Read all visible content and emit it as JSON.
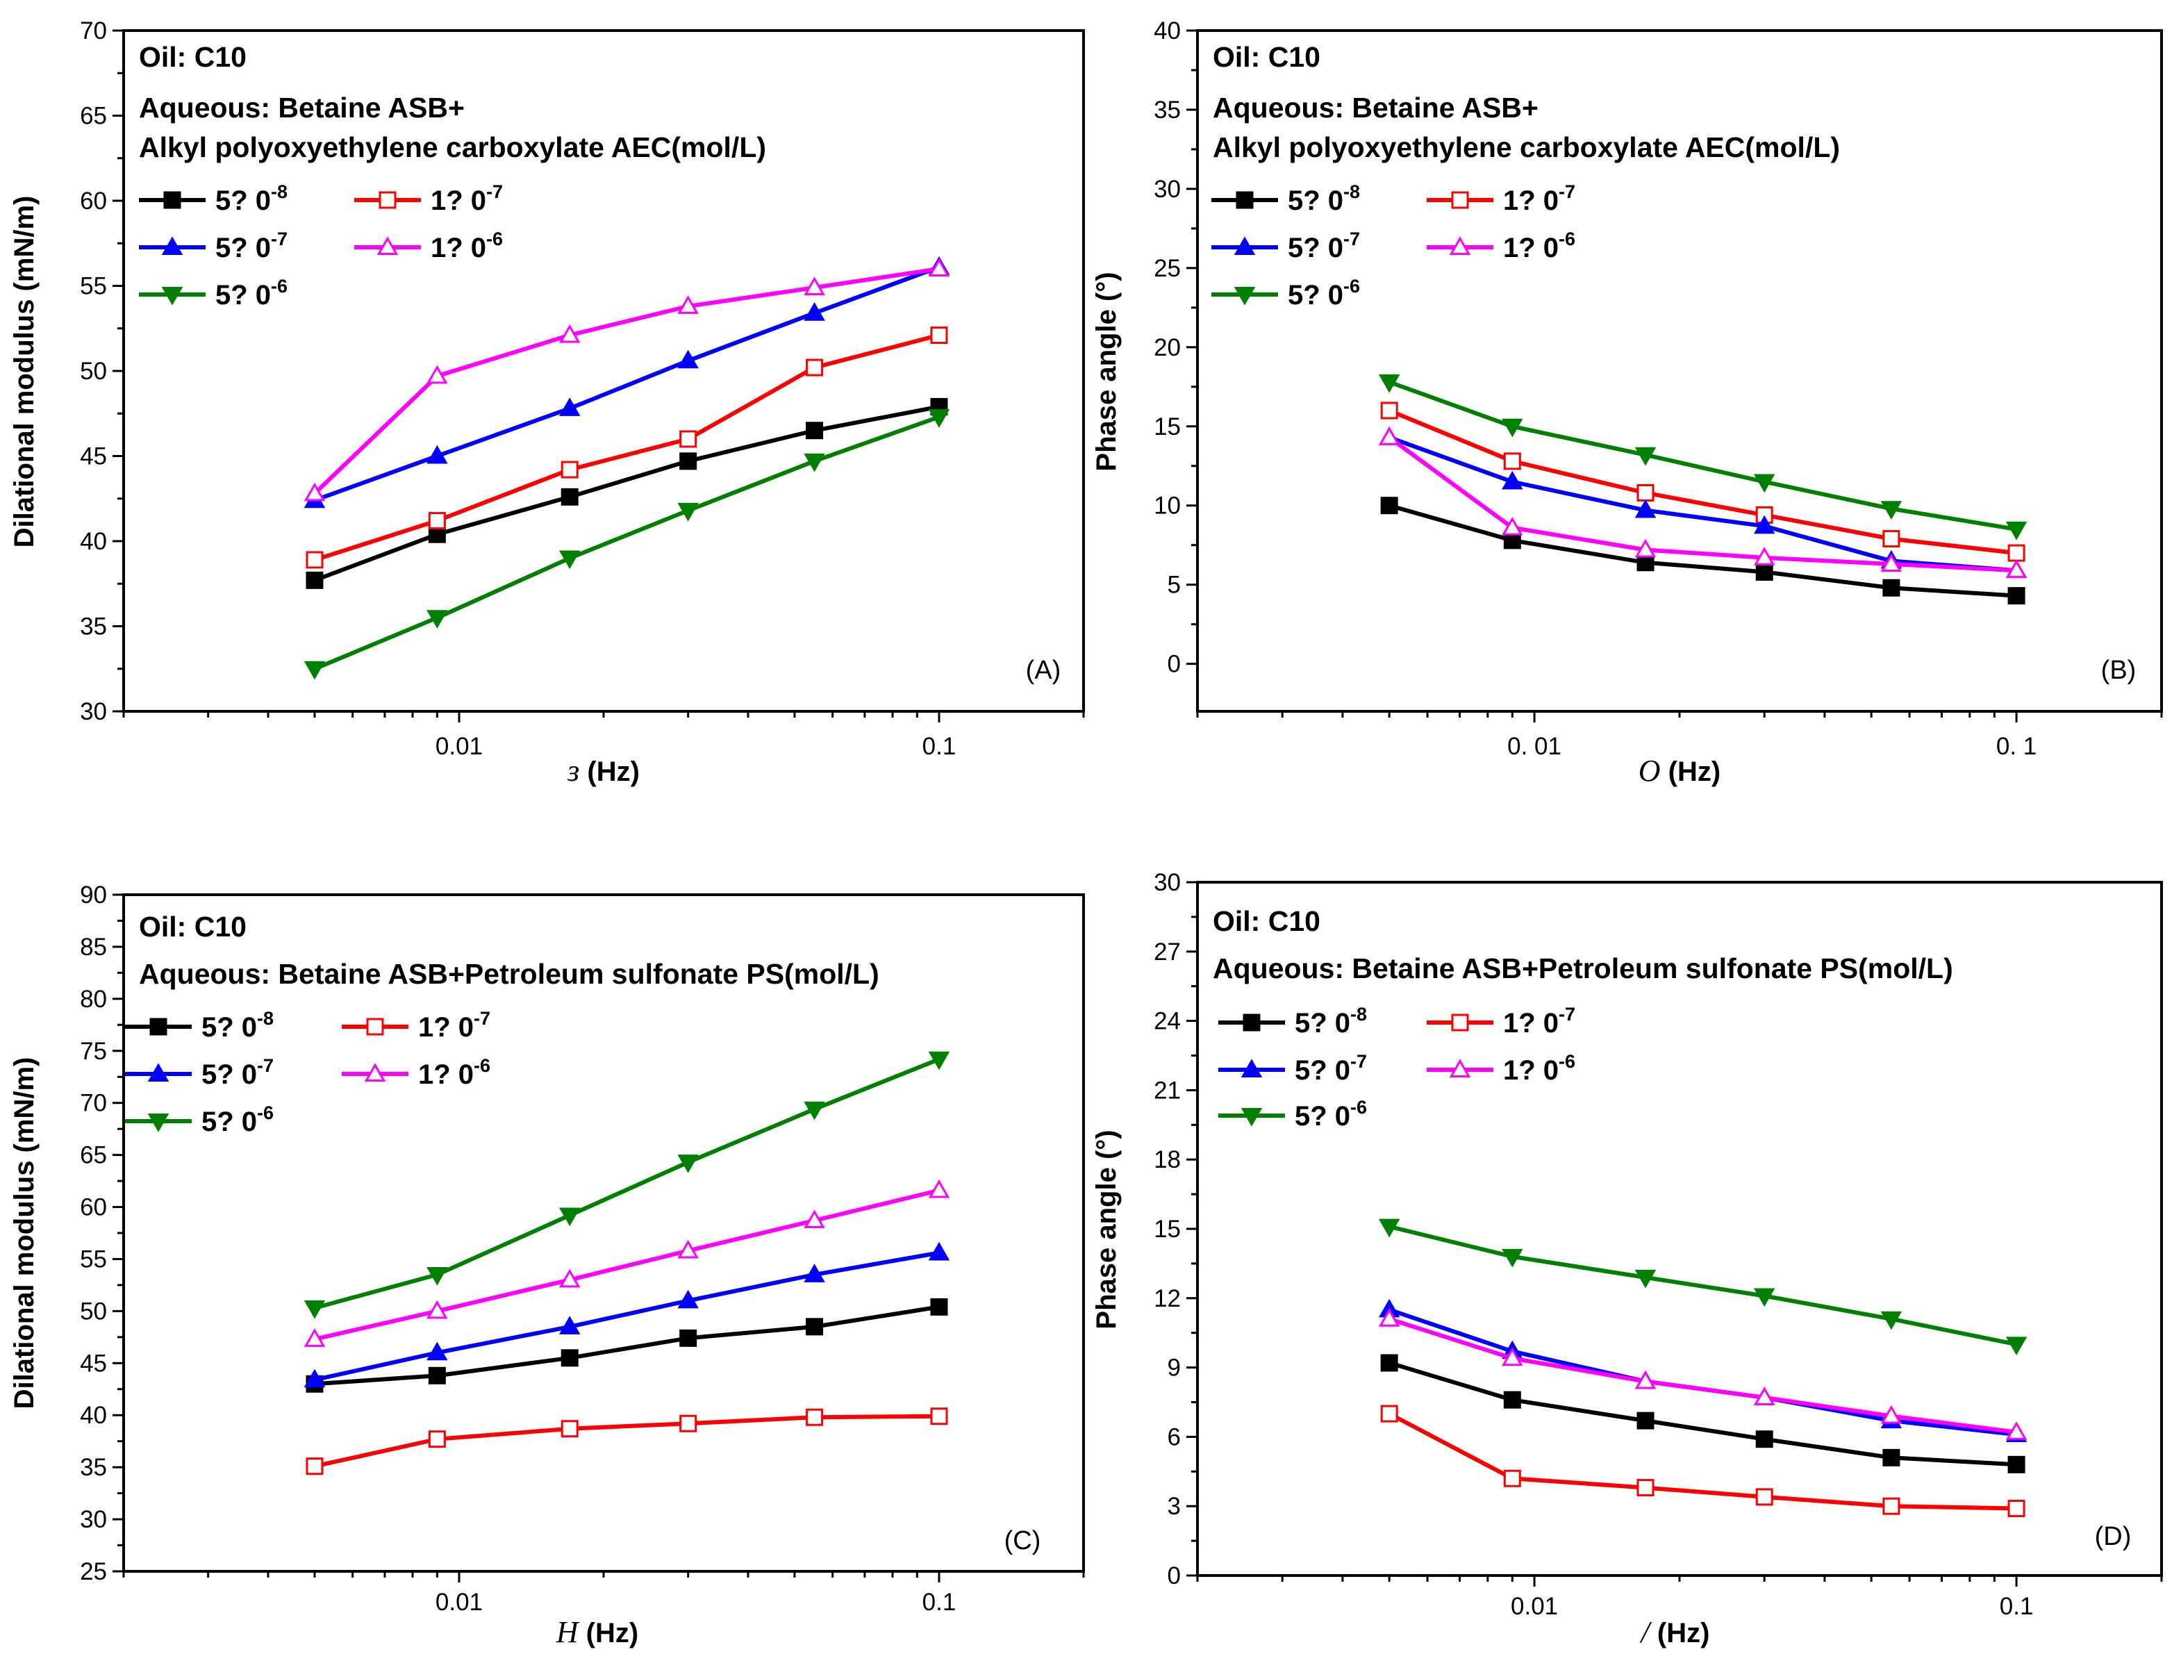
{
  "colors": {
    "5e-8": "#000000",
    "1e-7": "#ff0000",
    "5e-7": "#0000ff",
    "1e-6": "#ff00ff",
    "5e-6": "#008000"
  },
  "chart_data": [
    {
      "type": "line",
      "panel_label": "(A)",
      "ylabel": "Dilational modulus (mN/m)",
      "xlabel_symbol": "ɜ",
      "xlabel_unit": "(Hz)",
      "x_scale": "log",
      "xlim": [
        0.002,
        0.2
      ],
      "xticks": [
        0.01,
        0.1
      ],
      "xtick_labels": [
        "0.01",
        "0.1"
      ],
      "ylim": [
        30,
        70
      ],
      "yticks": [
        30,
        35,
        40,
        45,
        50,
        55,
        60,
        65,
        70
      ],
      "annotation": [
        "Oil:  C10",
        "Aqueous: Betaine ASB+",
        "Alkyl polyoxyethylene carboxylate AEC(mol/L)"
      ],
      "x": [
        0.005,
        0.009,
        0.017,
        0.03,
        0.055,
        0.1
      ],
      "series": [
        {
          "name": "5?  0",
          "exp": "-8",
          "key": "5e-8",
          "marker": "square-filled",
          "values": [
            37.7,
            40.4,
            42.6,
            44.7,
            46.5,
            47.9
          ]
        },
        {
          "name": "1?  0",
          "exp": "-7",
          "key": "1e-7",
          "marker": "square-open",
          "values": [
            38.9,
            41.2,
            44.2,
            46.0,
            50.2,
            52.1
          ]
        },
        {
          "name": "5?  0",
          "exp": "-7",
          "key": "5e-7",
          "marker": "triangle-up-filled",
          "values": [
            42.4,
            45.0,
            47.8,
            50.6,
            53.4,
            56.1
          ]
        },
        {
          "name": "1?  0",
          "exp": "-6",
          "key": "1e-6",
          "marker": "triangle-up-open",
          "values": [
            42.8,
            49.7,
            52.1,
            53.8,
            54.9,
            56.0
          ]
        },
        {
          "name": "5?  0",
          "exp": "-6",
          "key": "5e-6",
          "marker": "triangle-down-filled",
          "values": [
            32.5,
            35.5,
            39.0,
            41.8,
            44.7,
            47.3
          ]
        }
      ]
    },
    {
      "type": "line",
      "panel_label": "(B)",
      "ylabel": "Phase angle (°)",
      "xlabel_symbol": "O",
      "xlabel_unit": "(Hz)",
      "x_scale": "log",
      "xlim": [
        0.002,
        0.2
      ],
      "xticks": [
        0.01,
        0.1
      ],
      "xtick_labels": [
        "0. 01",
        "0. 1"
      ],
      "ylim": [
        -3,
        40
      ],
      "yticks": [
        0,
        5,
        10,
        15,
        20,
        25,
        30,
        35,
        40
      ],
      "annotation": [
        "Oil:  C10",
        "Aqueous: Betaine ASB+",
        "Alkyl polyoxyethylene carboxylate AEC(mol/L)"
      ],
      "x": [
        0.005,
        0.009,
        0.017,
        0.03,
        0.055,
        0.1
      ],
      "series": [
        {
          "name": "5?  0",
          "exp": "-8",
          "key": "5e-8",
          "marker": "square-filled",
          "values": [
            10.0,
            7.8,
            6.4,
            5.8,
            4.8,
            4.3
          ]
        },
        {
          "name": "1?  0",
          "exp": "-7",
          "key": "1e-7",
          "marker": "square-open",
          "values": [
            16.0,
            12.8,
            10.8,
            9.4,
            7.9,
            7.0
          ]
        },
        {
          "name": "5?  0",
          "exp": "-7",
          "key": "5e-7",
          "marker": "triangle-up-filled",
          "values": [
            14.3,
            11.5,
            9.7,
            8.7,
            6.5,
            5.9
          ]
        },
        {
          "name": "1?  0",
          "exp": "-6",
          "key": "1e-6",
          "marker": "triangle-up-open",
          "values": [
            14.3,
            8.6,
            7.2,
            6.7,
            6.3,
            5.9
          ]
        },
        {
          "name": "5?  0",
          "exp": "-6",
          "key": "5e-6",
          "marker": "triangle-down-filled",
          "values": [
            17.8,
            15.0,
            13.2,
            11.5,
            9.8,
            8.5
          ]
        }
      ]
    },
    {
      "type": "line",
      "panel_label": "(C)",
      "ylabel": "Dilational modulus (mN/m)",
      "xlabel_symbol": "H",
      "xlabel_unit": "(Hz)",
      "x_scale": "log",
      "xlim": [
        0.002,
        0.2
      ],
      "xticks": [
        0.01,
        0.1
      ],
      "xtick_labels": [
        "0.01",
        "0.1"
      ],
      "ylim": [
        25,
        90
      ],
      "yticks": [
        25,
        30,
        35,
        40,
        45,
        50,
        55,
        60,
        65,
        70,
        75,
        80,
        85,
        90
      ],
      "annotation": [
        "Oil:  C10",
        "Aqueous: Betaine ASB+Petroleum sulfonate PS(mol/L)"
      ],
      "x": [
        0.005,
        0.009,
        0.017,
        0.03,
        0.055,
        0.1
      ],
      "series": [
        {
          "name": "5?  0",
          "exp": "-8",
          "key": "5e-8",
          "marker": "square-filled",
          "values": [
            43.0,
            43.8,
            45.5,
            47.4,
            48.5,
            50.4
          ]
        },
        {
          "name": "1?  0",
          "exp": "-7",
          "key": "1e-7",
          "marker": "square-open",
          "values": [
            35.1,
            37.7,
            38.7,
            39.2,
            39.8,
            39.9
          ]
        },
        {
          "name": "5?  0",
          "exp": "-7",
          "key": "5e-7",
          "marker": "triangle-up-filled",
          "values": [
            43.4,
            46.0,
            48.5,
            51.0,
            53.5,
            55.6
          ]
        },
        {
          "name": "1?  0",
          "exp": "-6",
          "key": "1e-6",
          "marker": "triangle-up-open",
          "values": [
            47.3,
            50.0,
            53.0,
            55.8,
            58.7,
            61.6
          ]
        },
        {
          "name": "5?  0",
          "exp": "-6",
          "key": "5e-6",
          "marker": "triangle-down-filled",
          "values": [
            50.3,
            53.5,
            59.2,
            64.3,
            69.4,
            74.2
          ]
        }
      ]
    },
    {
      "type": "line",
      "panel_label": "(D)",
      "ylabel": "Phase angle (°)",
      "xlabel_symbol": "/",
      "xlabel_unit": "(Hz)",
      "x_scale": "log",
      "xlim": [
        0.002,
        0.2
      ],
      "xticks": [
        0.01,
        0.1
      ],
      "xtick_labels": [
        "0.01",
        "0.1"
      ],
      "ylim": [
        0,
        30
      ],
      "yticks": [
        0,
        3,
        6,
        9,
        12,
        15,
        18,
        21,
        24,
        27,
        30
      ],
      "annotation": [
        "Oil:  C10",
        "Aqueous: Betaine ASB+Petroleum sulfonate PS(mol/L)"
      ],
      "x": [
        0.005,
        0.009,
        0.017,
        0.03,
        0.055,
        0.1
      ],
      "series": [
        {
          "name": "5?  0",
          "exp": "-8",
          "key": "5e-8",
          "marker": "square-filled",
          "values": [
            9.2,
            7.6,
            6.7,
            5.9,
            5.1,
            4.8
          ]
        },
        {
          "name": "1?  0",
          "exp": "-7",
          "key": "1e-7",
          "marker": "square-open",
          "values": [
            7.0,
            4.2,
            3.8,
            3.4,
            3.0,
            2.9
          ]
        },
        {
          "name": "5?  0",
          "exp": "-7",
          "key": "5e-7",
          "marker": "triangle-up-filled",
          "values": [
            11.5,
            9.7,
            8.4,
            7.7,
            6.7,
            6.1
          ]
        },
        {
          "name": "1?  0",
          "exp": "-6",
          "key": "1e-6",
          "marker": "triangle-up-open",
          "values": [
            11.1,
            9.4,
            8.4,
            7.7,
            6.9,
            6.2
          ]
        },
        {
          "name": "5?  0",
          "exp": "-6",
          "key": "5e-6",
          "marker": "triangle-down-filled",
          "values": [
            15.1,
            13.8,
            12.9,
            12.1,
            11.1,
            10.0
          ]
        }
      ]
    }
  ]
}
